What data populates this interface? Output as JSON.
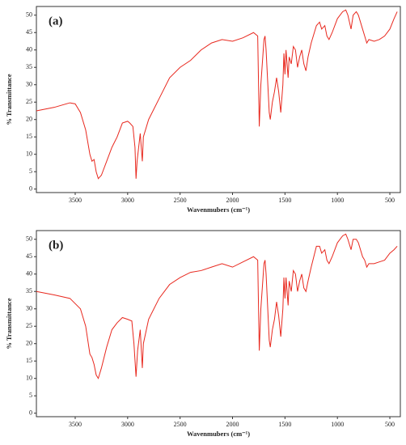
{
  "chart_data": [
    {
      "type": "line",
      "title": "(a)",
      "xlabel": "Wavenmubers (cm⁻¹)",
      "ylabel": "% Transmittance",
      "xlim": [
        3870,
        400
      ],
      "ylim": [
        -1,
        52.5
      ],
      "xticks": [
        3500,
        3000,
        2500,
        2000,
        1500,
        1000,
        500
      ],
      "yticks": [
        0,
        5,
        10,
        15,
        20,
        25,
        30,
        35,
        40,
        45,
        50
      ],
      "series": [
        {
          "name": "(a)",
          "color": "#e8281e",
          "x": [
            3870,
            3700,
            3550,
            3500,
            3450,
            3400,
            3360,
            3340,
            3320,
            3300,
            3280,
            3250,
            3200,
            3150,
            3100,
            3050,
            3000,
            2980,
            2950,
            2930,
            2920,
            2910,
            2880,
            2860,
            2850,
            2800,
            2700,
            2600,
            2500,
            2400,
            2300,
            2200,
            2100,
            2000,
            1900,
            1800,
            1760,
            1745,
            1730,
            1700,
            1690,
            1680,
            1650,
            1640,
            1620,
            1600,
            1580,
            1560,
            1540,
            1520,
            1510,
            1500,
            1490,
            1470,
            1460,
            1440,
            1420,
            1400,
            1380,
            1360,
            1340,
            1320,
            1300,
            1280,
            1250,
            1200,
            1170,
            1150,
            1120,
            1100,
            1080,
            1050,
            1000,
            950,
            920,
            900,
            870,
            850,
            820,
            800,
            760,
            740,
            720,
            700,
            650,
            600,
            550,
            500,
            460,
            430
          ],
          "values": [
            22.5,
            23.5,
            24.8,
            24.5,
            22,
            17,
            10,
            8,
            8.5,
            5,
            3,
            4,
            8,
            12,
            15,
            19,
            19.5,
            19,
            18,
            12,
            3,
            8,
            16,
            8,
            15,
            20,
            26,
            32,
            35,
            37,
            40,
            42,
            43,
            42.5,
            43.5,
            45,
            44,
            18,
            30,
            43,
            44,
            40,
            22,
            20,
            25,
            28,
            32,
            28,
            22,
            30,
            39,
            33,
            40,
            32,
            38,
            36,
            41,
            40,
            35,
            38,
            40,
            36,
            34,
            38,
            42,
            47,
            48,
            46,
            47,
            44,
            43,
            45,
            49,
            51,
            51.5,
            50,
            46,
            50,
            51,
            50,
            46,
            44,
            42,
            43,
            42.5,
            43,
            44,
            46,
            49,
            51
          ]
        }
      ]
    },
    {
      "type": "line",
      "title": "(b)",
      "xlabel": "Wavenmubers (cm⁻¹)",
      "ylabel": "% Transmittance",
      "xlim": [
        3870,
        400
      ],
      "ylim": [
        -1,
        52.5
      ],
      "xticks": [
        3500,
        3000,
        2500,
        2000,
        1500,
        1000,
        500
      ],
      "yticks": [
        0,
        5,
        10,
        15,
        20,
        25,
        30,
        35,
        40,
        45,
        50
      ],
      "series": [
        {
          "name": "(b)",
          "color": "#e8281e",
          "x": [
            3870,
            3700,
            3550,
            3450,
            3400,
            3360,
            3340,
            3320,
            3300,
            3280,
            3250,
            3200,
            3150,
            3100,
            3050,
            3000,
            2960,
            2940,
            2920,
            2905,
            2880,
            2860,
            2850,
            2800,
            2700,
            2600,
            2500,
            2400,
            2300,
            2200,
            2100,
            2000,
            1900,
            1800,
            1760,
            1745,
            1730,
            1700,
            1690,
            1680,
            1650,
            1640,
            1620,
            1600,
            1580,
            1560,
            1540,
            1520,
            1510,
            1500,
            1490,
            1470,
            1460,
            1440,
            1420,
            1400,
            1380,
            1360,
            1340,
            1320,
            1300,
            1280,
            1250,
            1200,
            1170,
            1150,
            1120,
            1100,
            1080,
            1050,
            1000,
            950,
            920,
            900,
            870,
            850,
            820,
            800,
            760,
            740,
            720,
            700,
            650,
            600,
            550,
            500,
            460,
            430
          ],
          "values": [
            35,
            34,
            33,
            30,
            25,
            17,
            16,
            14,
            11,
            10,
            13,
            19,
            24,
            26,
            27.5,
            27,
            26.5,
            20,
            10.5,
            18,
            24,
            13,
            20,
            27,
            33,
            37,
            39,
            40.5,
            41,
            42,
            43,
            42,
            43.5,
            45,
            44,
            18,
            30,
            43,
            44,
            40,
            21,
            19,
            24,
            27,
            32,
            28,
            22,
            30,
            39,
            33,
            39,
            31,
            38,
            35,
            41,
            40,
            35,
            38,
            40,
            36,
            35,
            38,
            42,
            48,
            48,
            46,
            47,
            44,
            43,
            45,
            49,
            51,
            51.5,
            50,
            47,
            50,
            50,
            49,
            45,
            44,
            42,
            43,
            43,
            43.5,
            44,
            46,
            47,
            48
          ]
        }
      ]
    }
  ]
}
